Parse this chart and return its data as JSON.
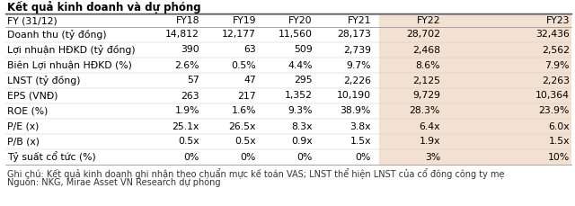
{
  "title": "Kết quả kinh doanh và dự phóng",
  "col_headers": [
    "FY (31/12)",
    "FY18",
    "FY19",
    "FY20",
    "FY21",
    "FY22",
    "FY23"
  ],
  "rows": [
    [
      "Doanh thu (tỷ đồng)",
      "14,812",
      "12,177",
      "11,560",
      "28,173",
      "28,702",
      "32,436"
    ],
    [
      "Lợi nhuận HĐKD (tỷ đồng)",
      "390",
      "63",
      "509",
      "2,739",
      "2,468",
      "2,562"
    ],
    [
      "Biên Lợi nhuận HĐKD (%)",
      "2.6%",
      "0.5%",
      "4.4%",
      "9.7%",
      "8.6%",
      "7.9%"
    ],
    [
      "LNST (tỷ đồng)",
      "57",
      "47",
      "295",
      "2,226",
      "2,125",
      "2,263"
    ],
    [
      "EPS (VNĐ)",
      "263",
      "217",
      "1,352",
      "10,190",
      "9,729",
      "10,364"
    ],
    [
      "ROE (%)",
      "1.9%",
      "1.6%",
      "9.3%",
      "38.9%",
      "28.3%",
      "23.9%"
    ],
    [
      "P/E (x)",
      "25.1x",
      "26.5x",
      "8.3x",
      "3.8x",
      "6.4x",
      "6.0x"
    ],
    [
      "P/B (x)",
      "0.5x",
      "0.5x",
      "0.9x",
      "1.5x",
      "1.9x",
      "1.5x"
    ],
    [
      "Tỷ suất cổ tức (%)",
      "0%",
      "0%",
      "0%",
      "0%",
      "3%",
      "10%"
    ]
  ],
  "note1": "Ghi chú: Kết quả kinh doanh ghi nhận theo chuẩn mực kế toán VAS; LNST thể hiện LNST của cổ đông công ty mẹ",
  "note2": "Nguồn: NKG, Mirae Asset VN Research dự phóng",
  "highlight_color": "#f2e0d0",
  "title_fontsize": 8.5,
  "header_fontsize": 7.8,
  "data_fontsize": 7.8,
  "note_fontsize": 7.0
}
